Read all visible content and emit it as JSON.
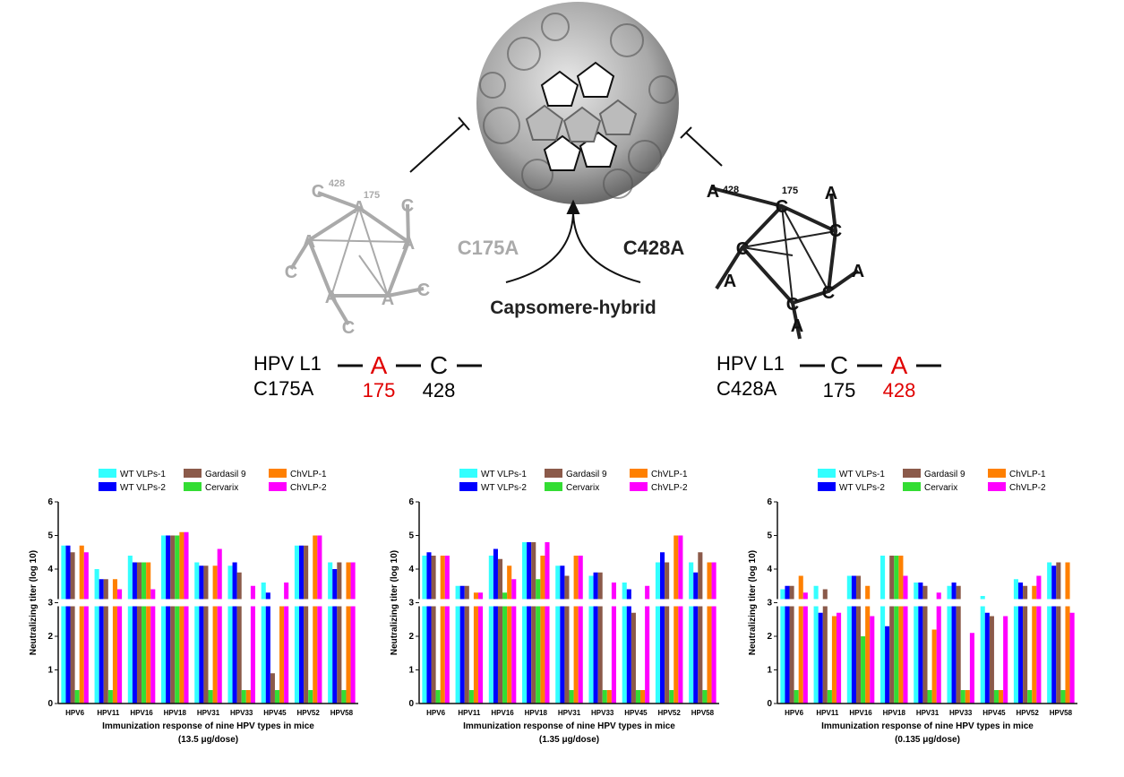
{
  "diagram": {
    "left": {
      "line1": "HPV L1",
      "line2": "C175A",
      "res1": "A",
      "res2": "C",
      "pos1": "175",
      "pos2": "428",
      "pentagon": [
        "C",
        "428",
        "175",
        "A",
        "C",
        "A",
        "A",
        "C",
        "C",
        "A",
        "A",
        "C"
      ]
    },
    "center": {
      "left_label": "C175A",
      "right_label": "C428A",
      "bottom_label": "Capsomere-hybrid"
    },
    "right": {
      "line1": "HPV L1",
      "line2": "C428A",
      "res1": "C",
      "res2": "A",
      "pos1": "175",
      "pos2": "428",
      "pentagon": [
        "A",
        "428",
        "175",
        "C",
        "A",
        "C",
        "C",
        "A",
        "A",
        "C",
        "C",
        "A"
      ]
    }
  },
  "chart_data": [
    {
      "type": "bar",
      "ylabel": "Neutralizing titer (log 10)",
      "xlabel": "Immunization response of nine HPV types in mice",
      "subtitle": "(13.5 μg/dose)",
      "categories": [
        "HPV6",
        "HPV11",
        "HPV16",
        "HPV18",
        "HPV31",
        "HPV33",
        "HPV45",
        "HPV52",
        "HPV58"
      ],
      "ylim": [
        0,
        6
      ],
      "yticks": [
        0,
        1,
        2,
        3,
        4,
        5,
        6
      ],
      "series": [
        {
          "name": "WT VLPs-1",
          "color": "#33ffff",
          "values": [
            4.7,
            4.0,
            4.4,
            5.0,
            4.2,
            4.1,
            3.6,
            4.7,
            4.2
          ]
        },
        {
          "name": "WT VLPs-2",
          "color": "#0000ff",
          "values": [
            4.7,
            3.7,
            4.2,
            5.0,
            4.1,
            4.2,
            3.3,
            4.7,
            4.0
          ]
        },
        {
          "name": "Gardasil 9",
          "color": "#8b5a4a",
          "values": [
            4.5,
            3.7,
            4.2,
            5.0,
            4.1,
            3.9,
            0.9,
            4.7,
            4.2
          ]
        },
        {
          "name": "Cervarix",
          "color": "#33dd33",
          "values": [
            0.4,
            0.4,
            4.2,
            5.0,
            0.4,
            0.4,
            0.4,
            0.4,
            0.4
          ]
        },
        {
          "name": "ChVLP-1",
          "color": "#ff8000",
          "values": [
            4.7,
            3.7,
            4.2,
            5.1,
            4.1,
            0.4,
            3.0,
            5.0,
            4.2
          ]
        },
        {
          "name": "ChVLP-2",
          "color": "#ff00ff",
          "values": [
            4.5,
            3.4,
            3.4,
            5.1,
            4.6,
            3.5,
            3.6,
            5.0,
            4.2
          ]
        }
      ]
    },
    {
      "type": "bar",
      "ylabel": "Neutralizing titer (log 10)",
      "xlabel": "Immunization response of nine HPV types in mice",
      "subtitle": "(1.35 μg/dose)",
      "categories": [
        "HPV6",
        "HPV11",
        "HPV16",
        "HPV18",
        "HPV31",
        "HPV33",
        "HPV45",
        "HPV52",
        "HPV58"
      ],
      "ylim": [
        0,
        6
      ],
      "yticks": [
        0,
        1,
        2,
        3,
        4,
        5,
        6
      ],
      "series": [
        {
          "name": "WT VLPs-1",
          "color": "#33ffff",
          "values": [
            4.4,
            3.5,
            4.4,
            4.8,
            4.1,
            3.8,
            3.6,
            4.2,
            4.2
          ]
        },
        {
          "name": "WT VLPs-2",
          "color": "#0000ff",
          "values": [
            4.5,
            3.5,
            4.6,
            4.8,
            4.1,
            3.9,
            3.4,
            4.5,
            3.9
          ]
        },
        {
          "name": "Gardasil 9",
          "color": "#8b5a4a",
          "values": [
            4.4,
            3.5,
            4.3,
            4.8,
            3.8,
            3.9,
            2.7,
            4.2,
            4.5
          ]
        },
        {
          "name": "Cervarix",
          "color": "#33dd33",
          "values": [
            0.4,
            0.4,
            3.3,
            3.7,
            0.4,
            0.4,
            0.4,
            0.4,
            0.4
          ]
        },
        {
          "name": "ChVLP-1",
          "color": "#ff8000",
          "values": [
            4.4,
            3.3,
            4.1,
            4.4,
            4.4,
            0.4,
            0.4,
            5.0,
            4.2
          ]
        },
        {
          "name": "ChVLP-2",
          "color": "#ff00ff",
          "values": [
            4.4,
            3.3,
            3.7,
            4.8,
            4.4,
            3.6,
            3.5,
            5.0,
            4.2
          ]
        }
      ]
    },
    {
      "type": "bar",
      "ylabel": "Neutralizing titer (log 10)",
      "xlabel": "Immunization response of nine HPV types in mice",
      "subtitle": "(0.135 μg/dose)",
      "categories": [
        "HPV6",
        "HPV11",
        "HPV16",
        "HPV18",
        "HPV31",
        "HPV33",
        "HPV45",
        "HPV52",
        "HPV58"
      ],
      "ylim": [
        0,
        6
      ],
      "yticks": [
        0,
        1,
        2,
        3,
        4,
        5,
        6
      ],
      "series": [
        {
          "name": "WT VLPs-1",
          "color": "#33ffff",
          "values": [
            3.4,
            3.5,
            3.8,
            4.4,
            3.6,
            3.5,
            3.2,
            3.7,
            4.2
          ]
        },
        {
          "name": "WT VLPs-2",
          "color": "#0000ff",
          "values": [
            3.5,
            2.7,
            3.8,
            2.3,
            3.6,
            3.6,
            2.7,
            3.6,
            4.1
          ]
        },
        {
          "name": "Gardasil 9",
          "color": "#8b5a4a",
          "values": [
            3.5,
            3.4,
            3.8,
            4.4,
            3.5,
            3.5,
            2.6,
            3.5,
            4.2
          ]
        },
        {
          "name": "Cervarix",
          "color": "#33dd33",
          "values": [
            0.4,
            0.4,
            2.0,
            4.4,
            0.4,
            0.4,
            0.4,
            0.4,
            0.4
          ]
        },
        {
          "name": "ChVLP-1",
          "color": "#ff8000",
          "values": [
            3.8,
            2.6,
            3.5,
            4.4,
            2.2,
            0.4,
            0.4,
            3.5,
            4.2
          ]
        },
        {
          "name": "ChVLP-2",
          "color": "#ff00ff",
          "values": [
            3.3,
            2.7,
            2.6,
            3.8,
            3.3,
            2.1,
            2.6,
            3.8,
            2.7
          ]
        }
      ]
    }
  ]
}
